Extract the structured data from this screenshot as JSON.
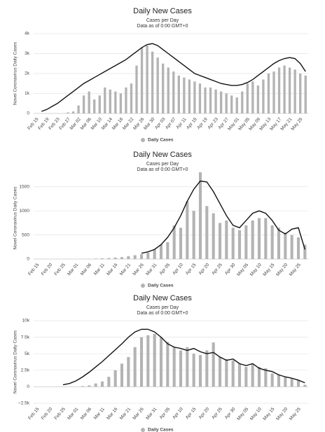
{
  "chart_data": [
    {
      "type": "bar",
      "title": "Daily New Cases",
      "subtitle": [
        "Cases per Day",
        "Data as of 0:00 GMT+0"
      ],
      "y_label": "Novel Coronavirus Daily Cases",
      "categories": [
        "Feb 15",
        null,
        "Feb 19",
        null,
        "Feb 23",
        null,
        "Feb 27",
        null,
        "Mar 02",
        null,
        "Mar 06",
        null,
        "Mar 10",
        null,
        "Mar 14",
        null,
        "Mar 18",
        null,
        "Mar 22",
        null,
        "Mar 26",
        null,
        "Mar 30",
        null,
        "Apr 03",
        null,
        "Apr 07",
        null,
        "Apr 11",
        null,
        "Apr 15",
        null,
        "Apr 19",
        null,
        "Apr 23",
        null,
        "Apr 27",
        null,
        "May 01",
        null,
        "May 05",
        null,
        "May 09",
        null,
        "May 13",
        null,
        "May 17",
        null,
        "May 21",
        null,
        "May 25",
        null
      ],
      "series": [
        {
          "name": "Daily Cases",
          "type": "bar",
          "color": "#b3b3b3",
          "values": [
            0,
            0,
            0,
            0,
            0,
            0,
            50,
            100,
            400,
            900,
            1100,
            700,
            900,
            1300,
            1200,
            1100,
            1000,
            1300,
            1500,
            2400,
            3300,
            3400,
            3100,
            2800,
            2500,
            2300,
            2100,
            1900,
            1800,
            1700,
            1600,
            1500,
            1300,
            1300,
            1200,
            1100,
            1000,
            900,
            800,
            1100,
            1500,
            1600,
            1400,
            1700,
            2000,
            2100,
            2300,
            2400,
            2300,
            2200,
            2000,
            1900
          ]
        },
        {
          "type": "line",
          "color": "#111111",
          "values": [
            null,
            100,
            200,
            350,
            500,
            700,
            900,
            1100,
            1300,
            1500,
            1650,
            1800,
            1950,
            2100,
            2250,
            2400,
            2550,
            2700,
            2900,
            3100,
            3300,
            3450,
            3500,
            3400,
            3200,
            3000,
            2800,
            2600,
            2400,
            2200,
            2000,
            1900,
            1800,
            1700,
            1600,
            1500,
            1450,
            1400,
            1400,
            1450,
            1550,
            1700,
            1900,
            2100,
            2300,
            2500,
            2650,
            2750,
            2800,
            2750,
            2500,
            2100
          ]
        }
      ],
      "ylim": [
        0,
        4000
      ],
      "yticks": [
        0,
        {
          "value": 1000,
          "label": "1k"
        },
        {
          "value": 2000,
          "label": "2k"
        },
        {
          "value": 3000,
          "label": "3k"
        },
        {
          "value": 4000,
          "label": "4k"
        }
      ],
      "grid": true
    },
    {
      "type": "bar",
      "title": "Daily New Cases",
      "subtitle": [
        "Cases per Day",
        "Data as of 0:00 GMT+0"
      ],
      "y_label": "Novel Coronavirus Daily Cases",
      "categories": [
        "Feb 15",
        null,
        "Feb 20",
        null,
        "Feb 25",
        null,
        "Mar 01",
        null,
        "Mar 06",
        null,
        "Mar 11",
        null,
        "Mar 16",
        null,
        "Mar 21",
        null,
        "Mar 26",
        null,
        "Mar 31",
        null,
        "Apr 05",
        null,
        "Apr 10",
        null,
        "Apr 15",
        null,
        "Apr 20",
        null,
        "Apr 25",
        null,
        "Apr 30",
        null,
        "May 05",
        null,
        "May 10",
        null,
        "May 15",
        null,
        "May 20",
        null,
        "May 25",
        null
      ],
      "series": [
        {
          "name": "Daily Cases",
          "type": "bar",
          "color": "#b3b3b3",
          "values": [
            0,
            0,
            0,
            0,
            0,
            0,
            0,
            0,
            5,
            10,
            15,
            20,
            30,
            40,
            60,
            80,
            100,
            130,
            200,
            300,
            350,
            700,
            650,
            1200,
            1000,
            1800,
            1100,
            950,
            750,
            800,
            650,
            600,
            700,
            800,
            850,
            850,
            700,
            650,
            550,
            500,
            450,
            300
          ]
        },
        {
          "type": "line",
          "color": "#111111",
          "values": [
            null,
            null,
            null,
            null,
            null,
            null,
            null,
            null,
            null,
            null,
            null,
            null,
            null,
            null,
            null,
            null,
            120,
            150,
            200,
            300,
            450,
            650,
            900,
            1200,
            1450,
            1620,
            1600,
            1400,
            1150,
            900,
            700,
            650,
            800,
            950,
            1000,
            950,
            800,
            600,
            520,
            620,
            650,
            200
          ]
        }
      ],
      "ylim": [
        0,
        1700
      ],
      "yticks": [
        0,
        500,
        1000,
        1500
      ],
      "grid": true
    },
    {
      "type": "bar",
      "title": "Daily New Cases",
      "subtitle": [
        "Cases per Day",
        "Data as of 0:00 GMT+0"
      ],
      "y_label": "Novel Coronavirus Daily Cases",
      "categories": [
        "Feb 15",
        null,
        "Feb 20",
        null,
        "Feb 25",
        null,
        "Mar 01",
        null,
        "Mar 06",
        null,
        "Mar 11",
        null,
        "Mar 16",
        null,
        "Mar 21",
        null,
        "Mar 26",
        null,
        "Mar 31",
        null,
        "Apr 05",
        null,
        "Apr 10",
        null,
        "Apr 15",
        null,
        "Apr 20",
        null,
        "Apr 25",
        null,
        "Apr 30",
        null,
        "May 05",
        null,
        "May 10",
        null,
        "May 15",
        null,
        "May 20",
        null,
        "May 25",
        null
      ],
      "series": [
        {
          "name": "Daily Cases",
          "type": "bar",
          "color": "#b3b3b3",
          "values": [
            0,
            0,
            0,
            0,
            0,
            0,
            0,
            100,
            200,
            500,
            800,
            1500,
            2500,
            3500,
            4500,
            6000,
            7500,
            7800,
            8000,
            7500,
            6800,
            6000,
            5500,
            6000,
            5000,
            4800,
            5500,
            6700,
            4500,
            4200,
            4000,
            3500,
            3000,
            3500,
            3000,
            2800,
            2000,
            1800,
            1500,
            1200,
            1000,
            300
          ]
        },
        {
          "type": "line",
          "color": "#111111",
          "values": [
            null,
            null,
            null,
            null,
            300,
            500,
            900,
            1500,
            2200,
            3000,
            3800,
            4700,
            5600,
            6500,
            7500,
            8300,
            8700,
            8700,
            8300,
            7500,
            6500,
            6000,
            5800,
            5500,
            5800,
            5300,
            5000,
            5200,
            4500,
            4000,
            4200,
            3500,
            3200,
            3500,
            2800,
            2500,
            2300,
            1800,
            1500,
            1300,
            1000,
            600
          ]
        }
      ],
      "ylim": [
        -2500,
        10000
      ],
      "yticks": [
        {
          "value": -2500,
          "label": "−2.5k"
        },
        0,
        {
          "value": 2500,
          "label": "2.5k"
        },
        {
          "value": 5000,
          "label": "5k"
        },
        {
          "value": 7500,
          "label": "7.5k"
        },
        {
          "value": 10000,
          "label": "10k"
        }
      ],
      "grid": true
    }
  ]
}
